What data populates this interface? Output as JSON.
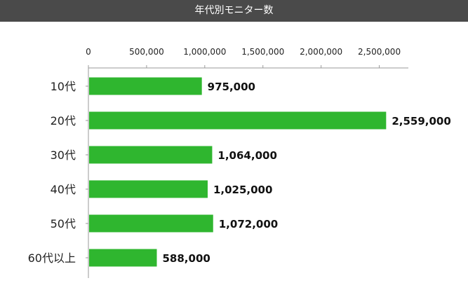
{
  "chart_data": {
    "type": "bar",
    "orientation": "horizontal",
    "title": "年代別モニター数",
    "categories": [
      "10代",
      "20代",
      "30代",
      "40代",
      "50代",
      "60代以上"
    ],
    "values": [
      975000,
      2559000,
      1064000,
      1025000,
      1072000,
      588000
    ],
    "value_labels": [
      "975,000",
      "2,559,000",
      "1,064,000",
      "1,025,000",
      "1,072,000",
      "588,000"
    ],
    "xlim": [
      0,
      2750000
    ],
    "ticks": [
      0,
      500000,
      1000000,
      1500000,
      2000000,
      2500000
    ],
    "tick_labels": [
      "0",
      "500,000",
      "1,000,000",
      "1,500,000",
      "2,000,000",
      "2,500,000"
    ],
    "xlabel": "",
    "ylabel": "",
    "grid": false,
    "axis_position": "top",
    "bar_color": "#2fb62f",
    "title_bar_color": "#4a4a4a"
  }
}
